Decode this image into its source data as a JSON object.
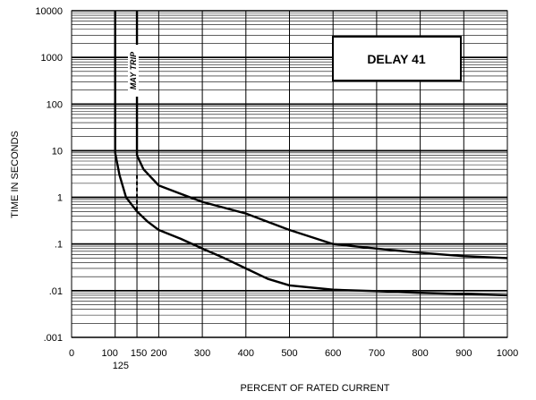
{
  "chart_data": {
    "type": "line",
    "title": "",
    "xlabel": "PERCENT OF RATED CURRENT",
    "ylabel": "TIME IN SECONDS",
    "x_scale": "linear",
    "y_scale": "log",
    "xlim": [
      0,
      1000
    ],
    "ylim": [
      0.001,
      10000
    ],
    "x_ticks": [
      0,
      100,
      150,
      200,
      300,
      400,
      500,
      600,
      700,
      800,
      900,
      1000
    ],
    "x_tick_labels": [
      "0",
      "100",
      "150",
      "200",
      "300",
      "400",
      "500",
      "600",
      "700",
      "800",
      "900",
      "1000"
    ],
    "x_extra_tick": {
      "value": 125,
      "label": "125"
    },
    "y_ticks": [
      0.001,
      0.01,
      0.1,
      1,
      10,
      100,
      1000,
      10000
    ],
    "y_tick_labels": [
      ".001",
      ".01",
      ".1",
      "1",
      "10",
      "100",
      "1000",
      "10000"
    ],
    "grid": "dense horizontal log grid, vertical lines at 100-unit steps",
    "annotations": [
      {
        "text": "DELAY 41",
        "boxed": true,
        "position": "top-right"
      },
      {
        "text": "MAY TRIP",
        "orientation": "vertical",
        "x_range": [
          125,
          150
        ]
      }
    ],
    "series": [
      {
        "role": "lower trip curve",
        "points": [
          [
            100,
            10000
          ],
          [
            100,
            9
          ],
          [
            110,
            3
          ],
          [
            125,
            1
          ],
          [
            150,
            0.5
          ],
          [
            175,
            0.3
          ],
          [
            200,
            0.2
          ],
          [
            250,
            0.13
          ],
          [
            300,
            0.08
          ],
          [
            350,
            0.05
          ],
          [
            400,
            0.03
          ],
          [
            450,
            0.018
          ],
          [
            500,
            0.013
          ],
          [
            600,
            0.0105
          ],
          [
            700,
            0.0098
          ],
          [
            800,
            0.009
          ],
          [
            900,
            0.0085
          ],
          [
            1000,
            0.008
          ]
        ]
      },
      {
        "role": "upper trip curve",
        "points": [
          [
            150,
            10000
          ],
          [
            150,
            8
          ],
          [
            165,
            4
          ],
          [
            200,
            1.8
          ],
          [
            250,
            1.2
          ],
          [
            300,
            0.8
          ],
          [
            400,
            0.45
          ],
          [
            500,
            0.2
          ],
          [
            600,
            0.1
          ],
          [
            700,
            0.08
          ],
          [
            800,
            0.065
          ],
          [
            900,
            0.055
          ],
          [
            1000,
            0.05
          ]
        ]
      },
      {
        "role": "may-trip dashed boundary",
        "style": "dashed",
        "points": [
          [
            150,
            3
          ],
          [
            150,
            0.5
          ]
        ]
      }
    ]
  }
}
